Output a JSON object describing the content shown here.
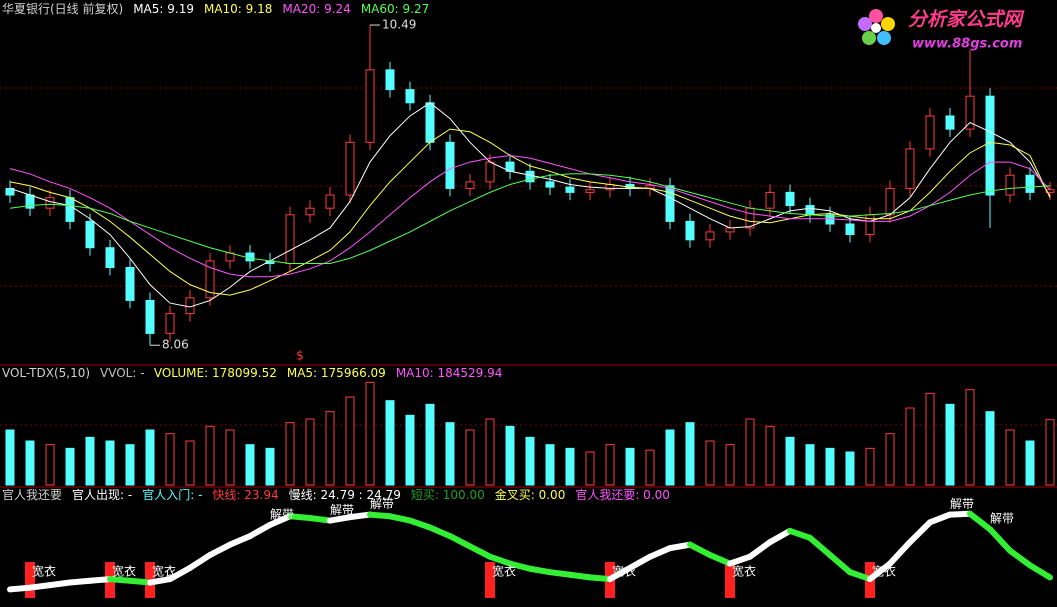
{
  "chart_data": [
    {
      "type": "candlestick",
      "title": "华夏银行(日线 前复权)",
      "legend": [
        {
          "text": "MA5: 9.19",
          "color": "#ffffff"
        },
        {
          "text": "MA10: 9.18",
          "color": "#ffff54"
        },
        {
          "text": "MA20: 9.24",
          "color": "#ff54ff"
        },
        {
          "text": "MA60: 9.27",
          "color": "#54ff54"
        }
      ],
      "marker": "$",
      "logo": "分析家公式网",
      "logo_url": "www.88gs.com",
      "ylim": [
        7.91,
        10.68
      ],
      "up_color": "#ff3c3c",
      "down_color": "#54ffff",
      "open": [
        9.25,
        9.2,
        9.1,
        9.18,
        9.0,
        8.8,
        8.65,
        8.4,
        8.15,
        8.3,
        8.42,
        8.7,
        8.76,
        8.7,
        8.68,
        9.05,
        9.1,
        9.2,
        9.6,
        10.15,
        10.0,
        9.9,
        9.6,
        9.25,
        9.3,
        9.45,
        9.38,
        9.3,
        9.26,
        9.22,
        9.24,
        9.28,
        9.25,
        9.27,
        9.0,
        8.86,
        8.92,
        8.95,
        9.1,
        9.22,
        9.12,
        9.05,
        8.98,
        8.9,
        9.05,
        9.25,
        9.55,
        9.8,
        9.7,
        9.95,
        9.2,
        9.35,
        9.22
      ],
      "close": [
        9.2,
        9.1,
        9.18,
        9.0,
        8.8,
        8.65,
        8.4,
        8.15,
        8.3,
        8.42,
        8.7,
        8.76,
        8.7,
        8.68,
        9.05,
        9.1,
        9.2,
        9.6,
        10.15,
        10.0,
        9.9,
        9.6,
        9.25,
        9.3,
        9.45,
        9.38,
        9.3,
        9.26,
        9.22,
        9.24,
        9.28,
        9.25,
        9.27,
        9.0,
        8.86,
        8.92,
        8.95,
        9.1,
        9.22,
        9.12,
        9.05,
        8.98,
        8.9,
        9.05,
        9.25,
        9.55,
        9.8,
        9.7,
        9.95,
        9.2,
        9.35,
        9.22,
        9.24
      ],
      "high": [
        9.31,
        9.26,
        9.24,
        9.24,
        9.06,
        8.86,
        8.71,
        8.46,
        8.36,
        8.48,
        8.76,
        8.82,
        8.82,
        8.76,
        9.11,
        9.16,
        9.26,
        9.66,
        10.49,
        10.21,
        10.06,
        9.96,
        9.66,
        9.36,
        9.51,
        9.51,
        9.44,
        9.36,
        9.32,
        9.3,
        9.34,
        9.34,
        9.33,
        9.33,
        9.06,
        8.98,
        9.01,
        9.16,
        9.28,
        9.28,
        9.18,
        9.11,
        9.04,
        9.11,
        9.31,
        9.61,
        9.86,
        9.86,
        10.3,
        10.01,
        9.41,
        9.41,
        9.3
      ],
      "low": [
        9.14,
        9.04,
        9.04,
        8.94,
        8.74,
        8.59,
        8.34,
        8.06,
        8.09,
        8.24,
        8.36,
        8.64,
        8.64,
        8.62,
        8.62,
        8.99,
        9.04,
        9.14,
        9.54,
        9.94,
        9.84,
        9.54,
        9.19,
        9.19,
        9.24,
        9.32,
        9.24,
        9.2,
        9.16,
        9.16,
        9.18,
        9.19,
        9.19,
        8.94,
        8.8,
        8.8,
        8.86,
        8.89,
        9.04,
        9.06,
        8.99,
        8.92,
        8.84,
        8.84,
        8.99,
        9.19,
        9.49,
        9.64,
        9.64,
        8.95,
        9.14,
        9.16,
        9.16
      ],
      "series": [
        {
          "name": "MA5",
          "color": "#ffffff",
          "values": [
            9.25,
            9.2,
            9.15,
            9.12,
            9.02,
            8.9,
            8.72,
            8.52,
            8.38,
            8.35,
            8.4,
            8.5,
            8.62,
            8.7,
            8.78,
            8.86,
            8.95,
            9.15,
            9.45,
            9.65,
            9.8,
            9.9,
            9.78,
            9.6,
            9.45,
            9.38,
            9.35,
            9.32,
            9.28,
            9.26,
            9.25,
            9.25,
            9.25,
            9.18,
            9.1,
            9.02,
            8.95,
            8.96,
            9.02,
            9.08,
            9.1,
            9.08,
            9.02,
            9.0,
            9.05,
            9.18,
            9.4,
            9.6,
            9.75,
            9.68,
            9.6,
            9.45,
            9.19
          ]
        },
        {
          "name": "MA10",
          "color": "#ffff54",
          "values": [
            9.3,
            9.27,
            9.22,
            9.18,
            9.1,
            9.0,
            8.88,
            8.75,
            8.62,
            8.52,
            8.46,
            8.44,
            8.48,
            8.55,
            8.62,
            8.7,
            8.78,
            8.92,
            9.12,
            9.3,
            9.45,
            9.6,
            9.7,
            9.68,
            9.6,
            9.5,
            9.42,
            9.38,
            9.33,
            9.3,
            9.28,
            9.26,
            9.25,
            9.22,
            9.16,
            9.1,
            9.04,
            9.0,
            8.99,
            9.02,
            9.05,
            9.06,
            9.04,
            9.02,
            9.02,
            9.08,
            9.22,
            9.38,
            9.52,
            9.6,
            9.58,
            9.5,
            9.18
          ]
        },
        {
          "name": "MA20",
          "color": "#ff54ff",
          "values": [
            9.4,
            9.36,
            9.3,
            9.25,
            9.18,
            9.1,
            9.0,
            8.9,
            8.8,
            8.72,
            8.65,
            8.6,
            8.58,
            8.58,
            8.6,
            8.64,
            8.7,
            8.8,
            8.92,
            9.05,
            9.18,
            9.3,
            9.4,
            9.45,
            9.48,
            9.5,
            9.48,
            9.44,
            9.4,
            9.36,
            9.33,
            9.3,
            9.28,
            9.25,
            9.2,
            9.15,
            9.1,
            9.06,
            9.04,
            9.02,
            9.02,
            9.02,
            9.01,
            9.0,
            9.0,
            9.04,
            9.12,
            9.22,
            9.35,
            9.45,
            9.45,
            9.4,
            9.24
          ]
        },
        {
          "name": "MA60",
          "color": "#54ff54",
          "values": [
            9.1,
            9.12,
            9.13,
            9.12,
            9.1,
            9.06,
            9.0,
            8.95,
            8.9,
            8.85,
            8.8,
            8.76,
            8.72,
            8.7,
            8.68,
            8.68,
            8.68,
            8.72,
            8.78,
            8.85,
            8.92,
            9.0,
            9.08,
            9.15,
            9.22,
            9.28,
            9.32,
            9.35,
            9.36,
            9.36,
            9.35,
            9.33,
            9.3,
            9.26,
            9.22,
            9.18,
            9.14,
            9.1,
            9.08,
            9.06,
            9.05,
            9.04,
            9.04,
            9.05,
            9.06,
            9.08,
            9.12,
            9.16,
            9.2,
            9.23,
            9.25,
            9.26,
            9.27
          ]
        }
      ]
    },
    {
      "type": "bar",
      "title": "VOL-TDX(5,10)",
      "legend": [
        {
          "text": "VVOL: -",
          "color": "#c0c0c0"
        },
        {
          "text": "VOLUME: 178099.52",
          "color": "#ffff54"
        },
        {
          "text": "MA5: 175966.09",
          "color": "#ffff54"
        },
        {
          "text": "MA10: 184529.94",
          "color": "#ff54ff"
        }
      ],
      "ylim": [
        0,
        300000
      ],
      "values": [
        150000,
        120000,
        110000,
        100000,
        130000,
        120000,
        110000,
        150000,
        140000,
        120000,
        160000,
        150000,
        110000,
        100000,
        170000,
        180000,
        200000,
        240000,
        280000,
        230000,
        190000,
        220000,
        170000,
        150000,
        180000,
        160000,
        130000,
        110000,
        100000,
        90000,
        110000,
        100000,
        95000,
        150000,
        170000,
        120000,
        110000,
        180000,
        160000,
        130000,
        110000,
        100000,
        90000,
        100000,
        140000,
        210000,
        250000,
        220000,
        260000,
        200000,
        150000,
        120000,
        178099.52
      ]
    },
    {
      "type": "line",
      "title": "官人我还要",
      "legend": [
        {
          "text": "官人出现: -",
          "color": "#ffffff"
        },
        {
          "text": "官人入门: -",
          "color": "#54ffff"
        },
        {
          "text": "快线: 23.94",
          "color": "#ff3c3c"
        },
        {
          "text": "慢线: 24.79 : 24.79",
          "color": "#ffffff"
        },
        {
          "text": "短买: 100.00",
          "color": "#20a020"
        },
        {
          "text": "金叉买: 0.00",
          "color": "#ffff54"
        },
        {
          "text": "官人我还要: 0.00",
          "color": "#ff54ff"
        }
      ],
      "ylim": [
        0,
        100
      ],
      "rise_color": "#ffffff",
      "fall_color": "#33ee33",
      "values": [
        10,
        12,
        15,
        18,
        20,
        22,
        20,
        18,
        22,
        35,
        50,
        62,
        72,
        85,
        95,
        93,
        90,
        94,
        97,
        95,
        90,
        82,
        72,
        60,
        48,
        40,
        34,
        30,
        27,
        24,
        22,
        35,
        48,
        58,
        62,
        50,
        40,
        48,
        65,
        78,
        70,
        50,
        30,
        22,
        40,
        65,
        88,
        97,
        98,
        80,
        55,
        38,
        23.94
      ],
      "annotations": [
        {
          "index": 1,
          "text": "宽衣"
        },
        {
          "index": 5,
          "text": "宽衣"
        },
        {
          "index": 7,
          "text": "宽衣"
        },
        {
          "index": 24,
          "text": "宽衣"
        },
        {
          "index": 30,
          "text": "宽衣"
        },
        {
          "index": 36,
          "text": "宽衣"
        },
        {
          "index": 43,
          "text": "宽衣"
        },
        {
          "index": 13,
          "text": "解带"
        },
        {
          "index": 16,
          "text": "解带"
        },
        {
          "index": 18,
          "text": "解带"
        },
        {
          "index": 47,
          "text": "解带"
        },
        {
          "index": 49,
          "text": "解带"
        }
      ]
    }
  ]
}
